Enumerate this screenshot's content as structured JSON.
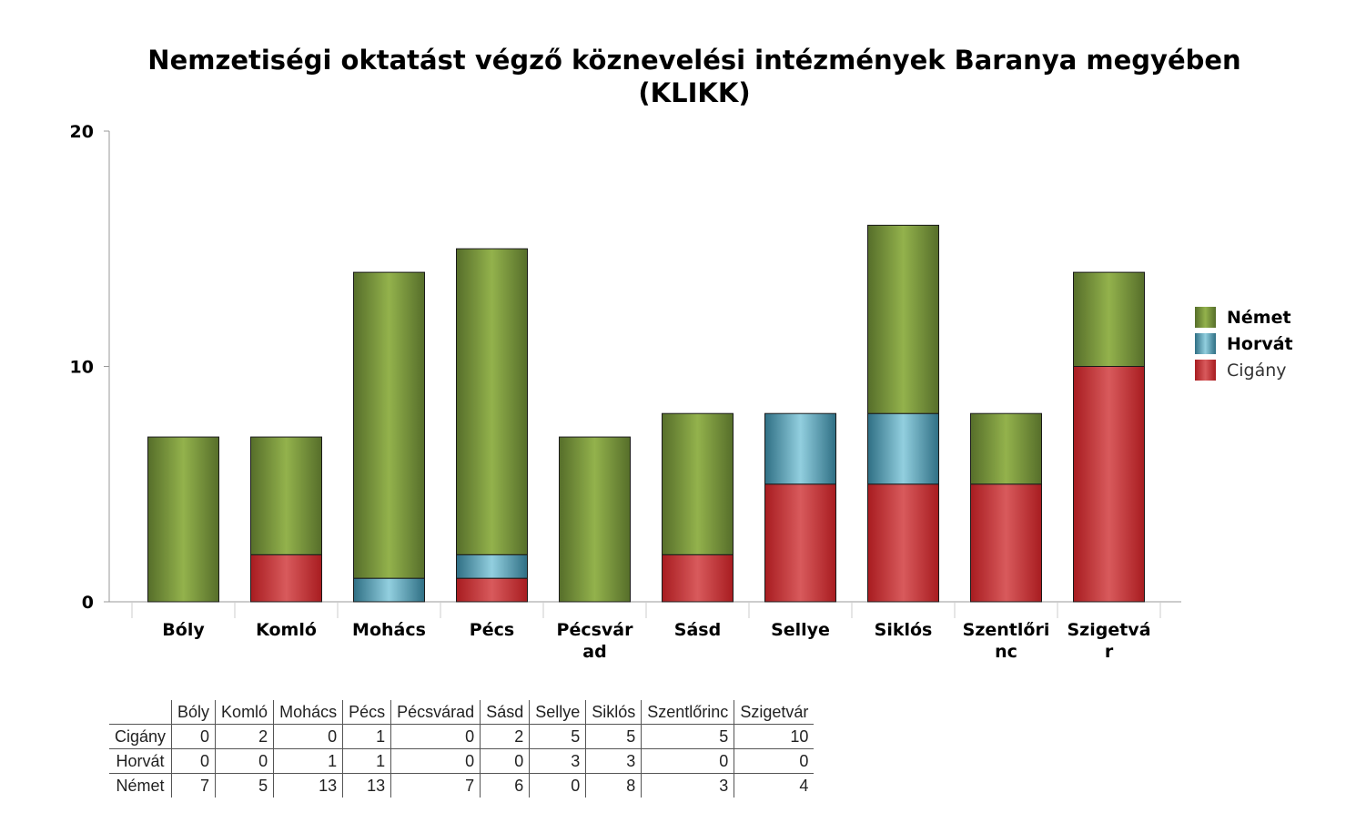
{
  "chart_data": {
    "type": "bar",
    "stacked": true,
    "title": "Nemzetiségi oktatást végző köznevelési intézmények Baranya megyében (KLIKK)",
    "title_lines": [
      "Nemzetiségi oktatást végző köznevelési intézmények Baranya megyében",
      "(KLIKK)"
    ],
    "categories": [
      "Bóly",
      "Komló",
      "Mohács",
      "Pécs",
      "Pécsvárad",
      "Sásd",
      "Sellye",
      "Siklós",
      "Szentlőrinc",
      "Szigetvár"
    ],
    "category_label_lines": [
      [
        "Bóly"
      ],
      [
        "Komló"
      ],
      [
        "Mohács"
      ],
      [
        "Pécs"
      ],
      [
        "Pécsvár",
        "ad"
      ],
      [
        "Sásd"
      ],
      [
        "Sellye"
      ],
      [
        "Siklós"
      ],
      [
        "Szentlőri",
        "nc"
      ],
      [
        "Szigetvá",
        "r"
      ]
    ],
    "series": [
      {
        "name": "Cigány",
        "values": [
          0,
          2,
          0,
          1,
          0,
          2,
          5,
          5,
          5,
          10
        ],
        "color": "#c8282c"
      },
      {
        "name": "Horvát",
        "values": [
          0,
          0,
          1,
          1,
          0,
          0,
          3,
          3,
          0,
          0
        ],
        "color": "#5ea3b8"
      },
      {
        "name": "Német",
        "values": [
          7,
          5,
          13,
          13,
          7,
          6,
          0,
          8,
          3,
          4
        ],
        "color": "#7a9a3c"
      }
    ],
    "ylim": [
      0,
      20
    ],
    "yticks": [
      "0",
      "10",
      "20"
    ],
    "legend": {
      "position": "right",
      "order": [
        "Német",
        "Horvát",
        "Cigány"
      ],
      "bold": [
        "Német",
        "Horvát"
      ]
    },
    "grid": false,
    "data_table": true
  }
}
